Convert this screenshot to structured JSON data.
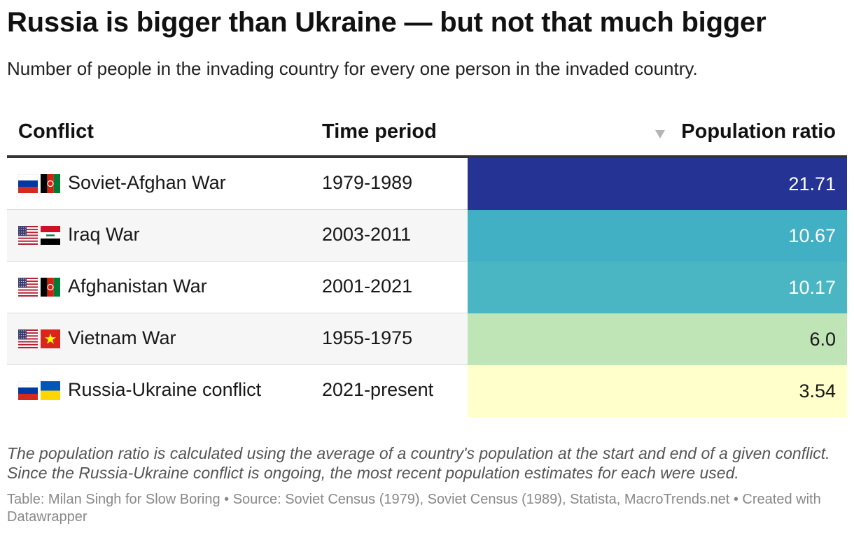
{
  "title": "Russia is bigger than Ukraine — but not that much bigger",
  "subtitle": "Number of people in the invading country for every one person in the invaded country.",
  "headers": {
    "conflict": "Conflict",
    "period": "Time period",
    "ratio": "Population ratio"
  },
  "rows": [
    {
      "conflict": "Soviet-Afghan War",
      "period": "1979-1989",
      "ratio": "21.71",
      "flags": [
        "russia-flag-icon",
        "afghanistan-flag-icon"
      ],
      "color": "#253494",
      "text_color": "#ffffff"
    },
    {
      "conflict": "Iraq War",
      "period": "2003-2011",
      "ratio": "10.67",
      "flags": [
        "usa-flag-icon",
        "iraq-flag-icon"
      ],
      "color": "#41b0c4",
      "text_color": "#ffffff"
    },
    {
      "conflict": "Afghanistan War",
      "period": "2001-2021",
      "ratio": "10.17",
      "flags": [
        "usa-flag-icon",
        "afghanistan-flag-icon"
      ],
      "color": "#4ab6c4",
      "text_color": "#ffffff"
    },
    {
      "conflict": "Vietnam War",
      "period": "1955-1975",
      "ratio": "6.0",
      "flags": [
        "usa-flag-icon",
        "vietnam-flag-icon"
      ],
      "color": "#bfe4b5",
      "text_color": "#181818"
    },
    {
      "conflict": "Russia-Ukraine conflict",
      "period": "2021-present",
      "ratio": "3.54",
      "flags": [
        "russia-flag-icon",
        "ukraine-flag-icon"
      ],
      "color": "#ffffcc",
      "text_color": "#181818"
    }
  ],
  "notes": "The population ratio is calculated using the average of a country's population at the start and end of a given conflict. Since the Russia-Ukraine conflict is ongoing, the most recent population estimates for each were used.",
  "source": "Table: Milan Singh for Slow Boring • Source: Soviet Census (1979), Soviet Census (1989), Statista, MacroTrends.net • Created with Datawrapper",
  "chart_data": {
    "type": "table",
    "columns": [
      "Conflict",
      "Time period",
      "Population ratio"
    ],
    "rows": [
      [
        "Soviet-Afghan War",
        "1979-1989",
        21.71
      ],
      [
        "Iraq War",
        "2003-2011",
        10.67
      ],
      [
        "Afghanistan War",
        "2001-2021",
        10.17
      ],
      [
        "Vietnam War",
        "1955-1975",
        6.0
      ],
      [
        "Russia-Ukraine conflict",
        "2021-present",
        3.54
      ]
    ]
  }
}
